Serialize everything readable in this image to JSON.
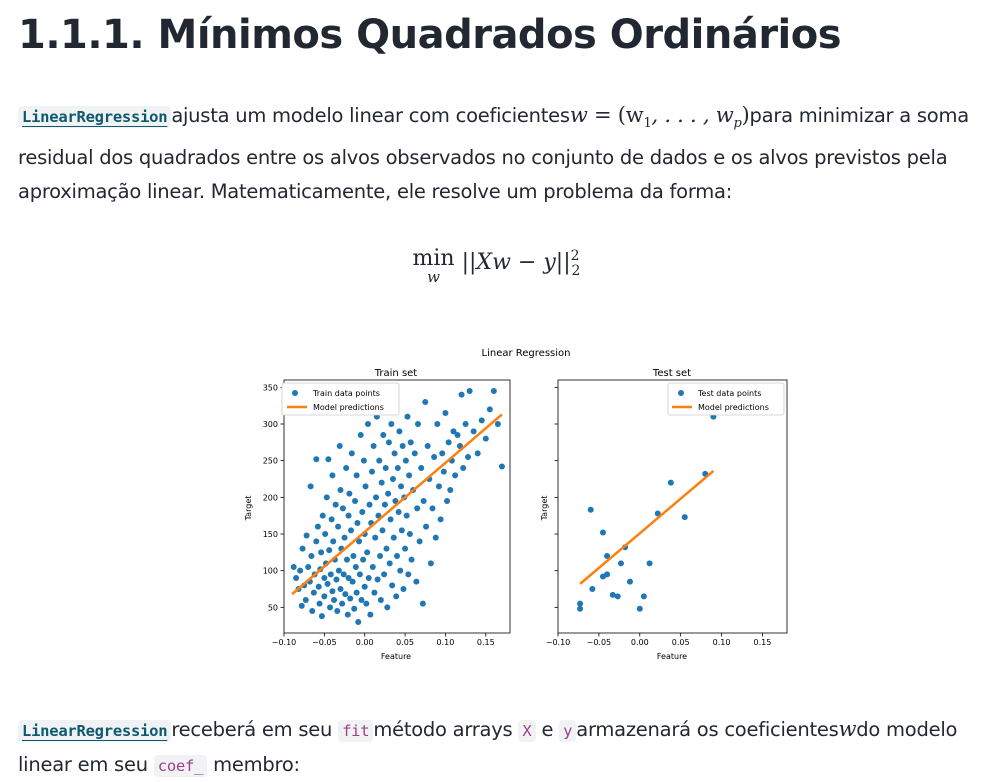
{
  "page": {
    "title": "1.1.1. Mínimos Quadrados Ordinários"
  },
  "intro": {
    "class_link": "LinearRegression",
    "text_1": "ajusta um modelo linear com coeficientes",
    "math_w": "w",
    "math_eq": "= (w",
    "math_sub1": "1",
    "math_mid": ", . . . , w",
    "math_subp": "p",
    "math_close": ")",
    "text_2": "para minimizar a soma",
    "line_2": "residual dos quadrados entre os alvos observados no conjunto de dados e os alvos previstos pela",
    "line_3": "aproximação linear. Matematicamente, ele resolve um problema da forma:"
  },
  "equation": {
    "operator": "min",
    "subscript": "w",
    "body": "||Xw − y||",
    "power": "2",
    "norm": "2"
  },
  "figure": {
    "suptitle": "Linear Regression",
    "train_title": "Train set",
    "test_title": "Test set",
    "xlabel": "Feature",
    "ylabel": "Target",
    "train_legend_points": "Train data points",
    "test_legend_points": "Test data points",
    "legend_line": "Model predictions",
    "point_color": "#1f77b4",
    "line_color": "#ff7f0e"
  },
  "chart_data": [
    {
      "type": "scatter",
      "title": "Train set",
      "xlabel": "Feature",
      "ylabel": "Target",
      "xlim": [
        -0.1,
        0.18
      ],
      "ylim": [
        15,
        360
      ],
      "xticks": [
        "−0.10",
        "−0.05",
        "0.00",
        "0.05",
        "0.10",
        "0.15"
      ],
      "yticks": [
        "50",
        "100",
        "150",
        "200",
        "250",
        "300",
        "350"
      ],
      "series": [
        {
          "name": "Train data points",
          "points": [
            [
              -0.088,
              105
            ],
            [
              -0.085,
              90
            ],
            [
              -0.082,
              75
            ],
            [
              -0.08,
              100
            ],
            [
              -0.078,
              52
            ],
            [
              -0.077,
              130
            ],
            [
              -0.075,
              80
            ],
            [
              -0.073,
              60
            ],
            [
              -0.072,
              148
            ],
            [
              -0.07,
              105
            ],
            [
              -0.068,
              85
            ],
            [
              -0.067,
              215
            ],
            [
              -0.066,
              120
            ],
            [
              -0.065,
              45
            ],
            [
              -0.063,
              70
            ],
            [
              -0.062,
              95
            ],
            [
              -0.06,
              140
            ],
            [
              -0.06,
              252
            ],
            [
              -0.058,
              160
            ],
            [
              -0.057,
              78
            ],
            [
              -0.056,
              55
            ],
            [
              -0.055,
              102
            ],
            [
              -0.054,
              125
            ],
            [
              -0.053,
              38
            ],
            [
              -0.052,
              175
            ],
            [
              -0.05,
              90
            ],
            [
              -0.05,
              65
            ],
            [
              -0.049,
              150
            ],
            [
              -0.048,
              110
            ],
            [
              -0.047,
              200
            ],
            [
              -0.046,
              82
            ],
            [
              -0.045,
              252
            ],
            [
              -0.044,
              128
            ],
            [
              -0.043,
              50
            ],
            [
              -0.042,
              95
            ],
            [
              -0.041,
              170
            ],
            [
              -0.04,
              72
            ],
            [
              -0.04,
              230
            ],
            [
              -0.039,
              140
            ],
            [
              -0.038,
              60
            ],
            [
              -0.037,
              115
            ],
            [
              -0.036,
              190
            ],
            [
              -0.035,
              88
            ],
            [
              -0.034,
              45
            ],
            [
              -0.033,
              160
            ],
            [
              -0.032,
              100
            ],
            [
              -0.031,
              270
            ],
            [
              -0.03,
              75
            ],
            [
              -0.03,
              210
            ],
            [
              -0.029,
              130
            ],
            [
              -0.028,
              55
            ],
            [
              -0.027,
              185
            ],
            [
              -0.026,
              95
            ],
            [
              -0.025,
              145
            ],
            [
              -0.024,
              68
            ],
            [
              -0.023,
              240
            ],
            [
              -0.022,
              115
            ],
            [
              -0.021,
              40
            ],
            [
              -0.02,
              175
            ],
            [
              -0.02,
              90
            ],
            [
              -0.019,
              205
            ],
            [
              -0.018,
              62
            ],
            [
              -0.017,
              155
            ],
            [
              -0.016,
              260
            ],
            [
              -0.015,
              85
            ],
            [
              -0.014,
              120
            ],
            [
              -0.013,
              48
            ],
            [
              -0.012,
              195
            ],
            [
              -0.011,
              105
            ],
            [
              -0.01,
              230
            ],
            [
              -0.01,
              70
            ],
            [
              -0.009,
              165
            ],
            [
              -0.008,
              30
            ],
            [
              -0.007,
              140
            ],
            [
              -0.006,
              95
            ],
            [
              -0.005,
              285
            ],
            [
              -0.004,
              60
            ],
            [
              -0.003,
              180
            ],
            [
              -0.002,
              115
            ],
            [
              -0.001,
              250
            ],
            [
              0.0,
              78
            ],
            [
              0.0,
              150
            ],
            [
              0.001,
              215
            ],
            [
              0.002,
              55
            ],
            [
              0.003,
              125
            ],
            [
              0.004,
              300
            ],
            [
              0.005,
              90
            ],
            [
              0.006,
              190
            ],
            [
              0.007,
              40
            ],
            [
              0.008,
              165
            ],
            [
              0.009,
              235
            ],
            [
              0.01,
              105
            ],
            [
              0.011,
              270
            ],
            [
              0.012,
              70
            ],
            [
              0.013,
              145
            ],
            [
              0.014,
              200
            ],
            [
              0.015,
              310
            ],
            [
              0.016,
              88
            ],
            [
              0.017,
              175
            ],
            [
              0.018,
              250
            ],
            [
              0.019,
              120
            ],
            [
              0.02,
              60
            ],
            [
              0.021,
              220
            ],
            [
              0.022,
              155
            ],
            [
              0.023,
              285
            ],
            [
              0.024,
              95
            ],
            [
              0.025,
              190
            ],
            [
              0.026,
              240
            ],
            [
              0.027,
              130
            ],
            [
              0.028,
              50
            ],
            [
              0.029,
              205
            ],
            [
              0.03,
              275
            ],
            [
              0.031,
              110
            ],
            [
              0.032,
              170
            ],
            [
              0.033,
              300
            ],
            [
              0.034,
              80
            ],
            [
              0.035,
              225
            ],
            [
              0.036,
              145
            ],
            [
              0.037,
              260
            ],
            [
              0.038,
              195
            ],
            [
              0.039,
              65
            ],
            [
              0.04,
              120
            ],
            [
              0.041,
              240
            ],
            [
              0.042,
              180
            ],
            [
              0.043,
              290
            ],
            [
              0.044,
              100
            ],
            [
              0.045,
              215
            ],
            [
              0.046,
              155
            ],
            [
              0.047,
              270
            ],
            [
              0.048,
              75
            ],
            [
              0.049,
              200
            ],
            [
              0.05,
              130
            ],
            [
              0.051,
              250
            ],
            [
              0.052,
              175
            ],
            [
              0.053,
              310
            ],
            [
              0.054,
              95
            ],
            [
              0.055,
              230
            ],
            [
              0.056,
              150
            ],
            [
              0.057,
              275
            ],
            [
              0.058,
              115
            ],
            [
              0.06,
              210
            ],
            [
              0.062,
              260
            ],
            [
              0.064,
              85
            ],
            [
              0.065,
              185
            ],
            [
              0.066,
              300
            ],
            [
              0.068,
              140
            ],
            [
              0.07,
              240
            ],
            [
              0.072,
              55
            ],
            [
              0.073,
              195
            ],
            [
              0.075,
              330
            ],
            [
              0.076,
              160
            ],
            [
              0.078,
              270
            ],
            [
              0.08,
              225
            ],
            [
              0.082,
              110
            ],
            [
              0.084,
              185
            ],
            [
              0.086,
              255
            ],
            [
              0.088,
              145
            ],
            [
              0.09,
              300
            ],
            [
              0.092,
              215
            ],
            [
              0.094,
              170
            ],
            [
              0.096,
              260
            ],
            [
              0.098,
              235
            ],
            [
              0.1,
              315
            ],
            [
              0.102,
              195
            ],
            [
              0.104,
              275
            ],
            [
              0.106,
              210
            ],
            [
              0.108,
              250
            ],
            [
              0.11,
              290
            ],
            [
              0.112,
              230
            ],
            [
              0.115,
              285
            ],
            [
              0.118,
              270
            ],
            [
              0.12,
              340
            ],
            [
              0.122,
              240
            ],
            [
              0.125,
              300
            ],
            [
              0.128,
              255
            ],
            [
              0.13,
              345
            ],
            [
              0.135,
              290
            ],
            [
              0.14,
              260
            ],
            [
              0.145,
              305
            ],
            [
              0.15,
              280
            ],
            [
              0.155,
              320
            ],
            [
              0.16,
              345
            ],
            [
              0.165,
              300
            ],
            [
              0.17,
              242
            ]
          ]
        },
        {
          "name": "Model predictions",
          "line": [
            [
              -0.09,
              68
            ],
            [
              0.17,
              313
            ]
          ]
        }
      ]
    },
    {
      "type": "scatter",
      "title": "Test set",
      "xlabel": "Feature",
      "ylabel": "Target",
      "xlim": [
        -0.1,
        0.18
      ],
      "ylim": [
        15,
        360
      ],
      "xticks": [
        "−0.10",
        "−0.05",
        "0.00",
        "0.05",
        "0.10",
        "0.15"
      ],
      "series": [
        {
          "name": "Test data points",
          "points": [
            [
              -0.073,
              55
            ],
            [
              -0.073,
              48
            ],
            [
              -0.06,
              183
            ],
            [
              -0.058,
              75
            ],
            [
              -0.045,
              152
            ],
            [
              -0.045,
              92
            ],
            [
              -0.04,
              120
            ],
            [
              -0.04,
              95
            ],
            [
              -0.033,
              67
            ],
            [
              -0.027,
              65
            ],
            [
              -0.023,
              110
            ],
            [
              -0.018,
              132
            ],
            [
              -0.012,
              85
            ],
            [
              0.0,
              48
            ],
            [
              0.005,
              65
            ],
            [
              0.012,
              110
            ],
            [
              0.022,
              178
            ],
            [
              0.038,
              220
            ],
            [
              0.055,
              173
            ],
            [
              0.08,
              232
            ],
            [
              0.09,
              310
            ]
          ]
        },
        {
          "name": "Model predictions",
          "line": [
            [
              -0.073,
              82
            ],
            [
              0.09,
              236
            ]
          ]
        }
      ]
    }
  ],
  "usage": {
    "class_link": "LinearRegression",
    "text_1": "receberá em seu",
    "code_fit": "fit",
    "text_2": "método arrays",
    "code_x": "X",
    "text_3": "e",
    "code_y": "y",
    "text_4": "armazenará os coeficientes",
    "math_w": "w",
    "text_5": "do modelo",
    "line_2_text": "linear em seu",
    "code_coef": "coef_",
    "line_2_end": "membro:"
  }
}
